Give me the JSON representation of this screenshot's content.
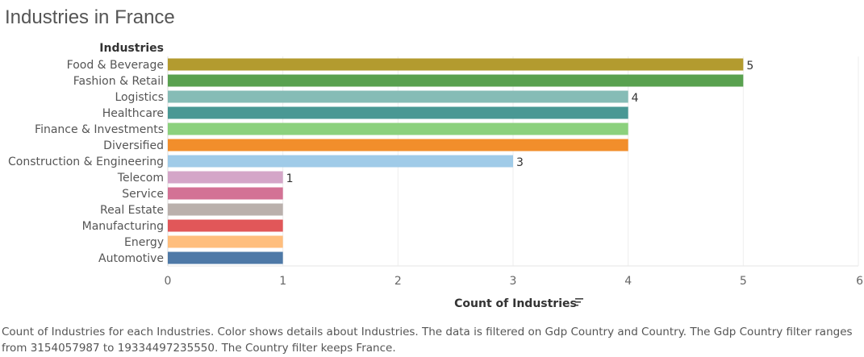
{
  "page_title": "Industries in France",
  "caption": "Count of Industries for each Industries.  Color shows details about Industries. The data is filtered on Gdp Country and Country. The Gdp Country filter ranges from 3154057987 to 19334497235550. The Country filter keeps France.",
  "chart_data": {
    "type": "bar",
    "orientation": "horizontal",
    "title": "Industries in France",
    "category_header": "Industries",
    "xlabel": "Count of Industries",
    "xlim": [
      0,
      6
    ],
    "xticks": [
      0,
      1,
      2,
      3,
      4,
      5,
      6
    ],
    "grid": true,
    "categories": [
      "Food & Beverage",
      "Fashion & Retail",
      "Logistics",
      "Healthcare",
      "Finance & Investments",
      "Diversified",
      "Construction & Engineering",
      "Telecom",
      "Service",
      "Real Estate",
      "Manufacturing",
      "Energy",
      "Automotive"
    ],
    "values": [
      5,
      5,
      4,
      4,
      4,
      4,
      3,
      1,
      1,
      1,
      1,
      1,
      1
    ],
    "colors": [
      "#b39b2f",
      "#59a14f",
      "#86bcb6",
      "#499894",
      "#8cd17d",
      "#f28e2b",
      "#a0cbe8",
      "#d4a6c8",
      "#d37295",
      "#bab0ac",
      "#e15759",
      "#ffbe7d",
      "#4e79a7"
    ],
    "value_labels": [
      {
        "index": 0,
        "text": "5"
      },
      {
        "index": 2,
        "text": "4"
      },
      {
        "index": 6,
        "text": "3"
      },
      {
        "index": 7,
        "text": "1"
      }
    ],
    "sort_icon": "sort-descending-icon"
  }
}
